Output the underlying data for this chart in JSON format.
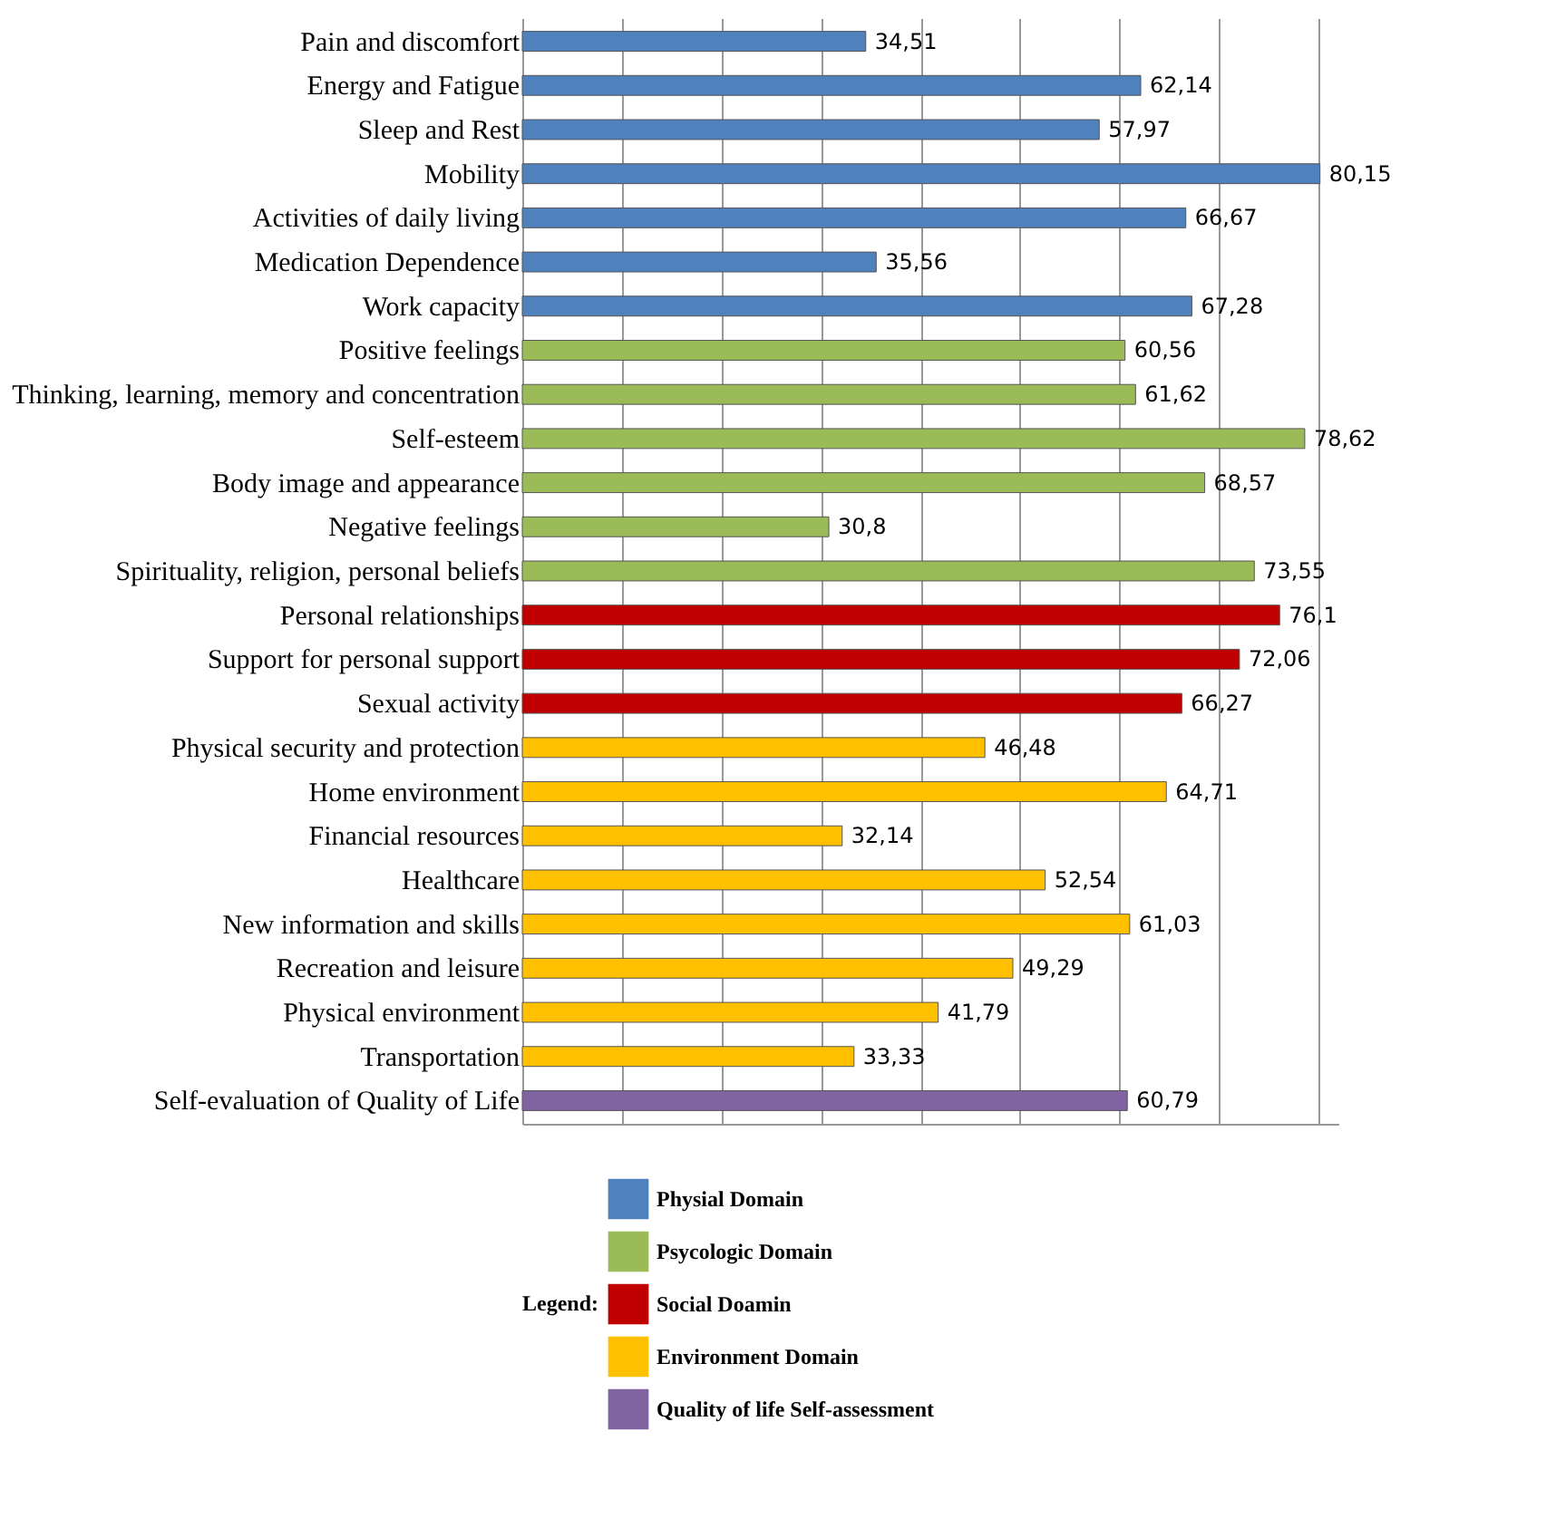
{
  "chart_data": {
    "type": "bar",
    "orientation": "horizontal",
    "legend_title": "Legend:",
    "legend": "bottom",
    "grid": "x",
    "tick_labels": "y",
    "xlim": [
      0,
      82
    ],
    "xticks": [
      0,
      10,
      20,
      30,
      40,
      50,
      60,
      70,
      80
    ],
    "categories": [
      "Pain and discomfort",
      "Energy and Fatigue",
      "Sleep and Rest",
      "Mobility",
      "Activities of daily living",
      "Medication Dependence",
      "Work capacity",
      "Positive feelings",
      "Thinking, learning, memory and concentration",
      "Self-esteem",
      "Body image and appearance",
      "Negative feelings",
      "Spirituality, religion, personal beliefs",
      "Personal relationships",
      "Support for personal support",
      "Sexual activity",
      "Physical security and protection",
      "Home environment",
      "Financial resources",
      "Healthcare",
      "New information and skills",
      "Recreation and leisure",
      "Physical environment",
      "Transportation",
      "Self-evaluation of Quality of Life"
    ],
    "series": [
      {
        "name": "Physial Domain",
        "color": "#4f81bd",
        "values": [
          34.51,
          62.14,
          57.97,
          80.15,
          66.67,
          35.56,
          67.28,
          null,
          null,
          null,
          null,
          null,
          null,
          null,
          null,
          null,
          null,
          null,
          null,
          null,
          null,
          null,
          null,
          null,
          null
        ],
        "value_labels": [
          "34,51",
          "62,14",
          "57,97",
          "80,15",
          "66,67",
          "35,56",
          "67,28",
          null,
          null,
          null,
          null,
          null,
          null,
          null,
          null,
          null,
          null,
          null,
          null,
          null,
          null,
          null,
          null,
          null,
          null
        ]
      },
      {
        "name": "Psycologic Domain",
        "color": "#9bbb59",
        "values": [
          null,
          null,
          null,
          null,
          null,
          null,
          null,
          60.56,
          61.62,
          78.62,
          68.57,
          30.8,
          73.55,
          null,
          null,
          null,
          null,
          null,
          null,
          null,
          null,
          null,
          null,
          null,
          null
        ],
        "value_labels": [
          null,
          null,
          null,
          null,
          null,
          null,
          null,
          "60,56",
          "61,62",
          "78,62",
          "68,57",
          "30,8",
          "73,55",
          null,
          null,
          null,
          null,
          null,
          null,
          null,
          null,
          null,
          null,
          null,
          null
        ]
      },
      {
        "name": "Social Doamin",
        "color": "#c00000",
        "values": [
          null,
          null,
          null,
          null,
          null,
          null,
          null,
          null,
          null,
          null,
          null,
          null,
          null,
          76.1,
          72.06,
          66.27,
          null,
          null,
          null,
          null,
          null,
          null,
          null,
          null,
          null
        ],
        "value_labels": [
          null,
          null,
          null,
          null,
          null,
          null,
          null,
          null,
          null,
          null,
          null,
          null,
          null,
          "76,1",
          "72,06",
          "66,27",
          null,
          null,
          null,
          null,
          null,
          null,
          null,
          null,
          null
        ]
      },
      {
        "name": "Environment Domain",
        "color": "#ffc000",
        "values": [
          null,
          null,
          null,
          null,
          null,
          null,
          null,
          null,
          null,
          null,
          null,
          null,
          null,
          null,
          null,
          null,
          46.48,
          64.71,
          32.14,
          52.54,
          61.03,
          49.29,
          41.79,
          33.33,
          null
        ],
        "value_labels": [
          null,
          null,
          null,
          null,
          null,
          null,
          null,
          null,
          null,
          null,
          null,
          null,
          null,
          null,
          null,
          null,
          "46,48",
          "64,71",
          "32,14",
          "52,54",
          "61,03",
          "49,29",
          "41,79",
          "33,33",
          null
        ]
      },
      {
        "name": "Quality of life Self-assessment",
        "color": "#8064a2",
        "values": [
          null,
          null,
          null,
          null,
          null,
          null,
          null,
          null,
          null,
          null,
          null,
          null,
          null,
          null,
          null,
          null,
          null,
          null,
          null,
          null,
          null,
          null,
          null,
          null,
          60.79
        ],
        "value_labels": [
          null,
          null,
          null,
          null,
          null,
          null,
          null,
          null,
          null,
          null,
          null,
          null,
          null,
          null,
          null,
          null,
          null,
          null,
          null,
          null,
          null,
          null,
          null,
          null,
          "60,79"
        ]
      }
    ]
  }
}
